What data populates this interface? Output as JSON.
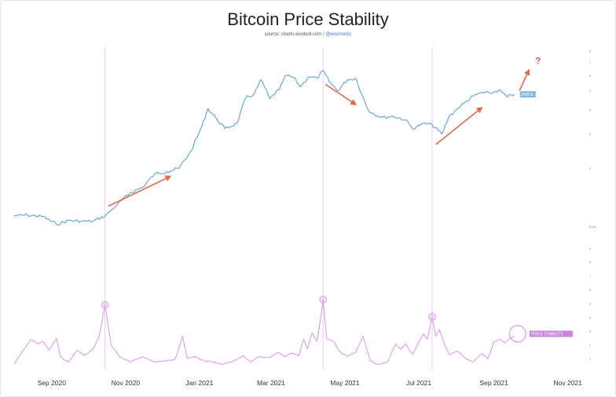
{
  "chart_data": {
    "type": "line",
    "title": "Bitcoin Price Stability",
    "subtitle_source": "source: charts.woobull.com / ",
    "subtitle_handle": "@woonomic",
    "x_axis": {
      "tick_labels": [
        "Sep 2020",
        "Nov 2020",
        "Jan 2021",
        "Mar 2021",
        "May 2021",
        "Jul 2021",
        "Sep 2021",
        "Nov 2021"
      ],
      "range": [
        "2020-08-01",
        "2021-11-20"
      ]
    },
    "price_axis": {
      "scale": "log",
      "range": [
        9000,
        80000
      ],
      "tick_labels": [
        {
          "v": 80000,
          "t": "8"
        },
        {
          "v": 70000,
          "t": "7"
        },
        {
          "v": 60000,
          "t": "6"
        },
        {
          "v": 50000,
          "t": "5"
        },
        {
          "v": 40000,
          "t": "4"
        },
        {
          "v": 30000,
          "t": "3"
        },
        {
          "v": 20000,
          "t": "2"
        },
        {
          "v": 10000,
          "t": "$10k"
        }
      ]
    },
    "stability_axis": {
      "tick_labels": [
        "9",
        "8",
        "7",
        "6",
        "5",
        "4",
        "3",
        "2",
        "1"
      ]
    },
    "vertical_markers": [
      "2020-10-15",
      "2021-04-13",
      "2021-07-12"
    ],
    "series": [
      {
        "name": "PRICE",
        "color": "#6aa9cc",
        "points": [
          [
            "2020-08-01",
            11400
          ],
          [
            "2020-08-12",
            11500
          ],
          [
            "2020-08-25",
            11300
          ],
          [
            "2020-09-05",
            10300
          ],
          [
            "2020-09-15",
            10800
          ],
          [
            "2020-09-25",
            10700
          ],
          [
            "2020-10-05",
            10700
          ],
          [
            "2020-10-15",
            11400
          ],
          [
            "2020-10-25",
            13000
          ],
          [
            "2020-11-05",
            15000
          ],
          [
            "2020-11-15",
            16000
          ],
          [
            "2020-11-25",
            18700
          ],
          [
            "2020-12-05",
            19200
          ],
          [
            "2020-12-15",
            20000
          ],
          [
            "2020-12-25",
            24500
          ],
          [
            "2021-01-03",
            33000
          ],
          [
            "2021-01-08",
            40500
          ],
          [
            "2021-01-15",
            36000
          ],
          [
            "2021-01-22",
            32000
          ],
          [
            "2021-02-01",
            34000
          ],
          [
            "2021-02-08",
            46000
          ],
          [
            "2021-02-15",
            48000
          ],
          [
            "2021-02-21",
            57000
          ],
          [
            "2021-02-28",
            45500
          ],
          [
            "2021-03-08",
            51000
          ],
          [
            "2021-03-13",
            60000
          ],
          [
            "2021-03-20",
            58500
          ],
          [
            "2021-03-25",
            52500
          ],
          [
            "2021-04-01",
            59000
          ],
          [
            "2021-04-08",
            58000
          ],
          [
            "2021-04-13",
            63500
          ],
          [
            "2021-04-18",
            56000
          ],
          [
            "2021-04-25",
            50000
          ],
          [
            "2021-05-03",
            57000
          ],
          [
            "2021-05-10",
            58000
          ],
          [
            "2021-05-15",
            48000
          ],
          [
            "2021-05-20",
            40000
          ],
          [
            "2021-05-25",
            38000
          ],
          [
            "2021-06-01",
            36500
          ],
          [
            "2021-06-10",
            37000
          ],
          [
            "2021-06-20",
            35500
          ],
          [
            "2021-06-26",
            32000
          ],
          [
            "2021-07-05",
            34000
          ],
          [
            "2021-07-12",
            33500
          ],
          [
            "2021-07-20",
            30000
          ],
          [
            "2021-07-26",
            37000
          ],
          [
            "2021-08-01",
            40000
          ],
          [
            "2021-08-08",
            43500
          ],
          [
            "2021-08-15",
            47000
          ],
          [
            "2021-08-22",
            49000
          ],
          [
            "2021-08-29",
            48500
          ],
          [
            "2021-09-05",
            50500
          ],
          [
            "2021-09-12",
            46500
          ],
          [
            "2021-09-18",
            48000
          ]
        ]
      },
      {
        "name": "PRICE STABILITY",
        "color": "#dba6e6",
        "points": [
          [
            "2020-08-01",
            0.2
          ],
          [
            "2020-08-08",
            1.4
          ],
          [
            "2020-08-15",
            2.5
          ],
          [
            "2020-08-20",
            2.1
          ],
          [
            "2020-08-25",
            2.3
          ],
          [
            "2020-08-30",
            1.5
          ],
          [
            "2020-09-05",
            2.6
          ],
          [
            "2020-09-08",
            0.9
          ],
          [
            "2020-09-15",
            0.4
          ],
          [
            "2020-09-22",
            1.5
          ],
          [
            "2020-09-28",
            1.0
          ],
          [
            "2020-10-05",
            1.6
          ],
          [
            "2020-10-10",
            2.7
          ],
          [
            "2020-10-15",
            5.7
          ],
          [
            "2020-10-20",
            2.0
          ],
          [
            "2020-10-27",
            0.9
          ],
          [
            "2020-11-05",
            0.4
          ],
          [
            "2020-11-15",
            0.9
          ],
          [
            "2020-11-25",
            0.4
          ],
          [
            "2020-12-05",
            0.5
          ],
          [
            "2020-12-12",
            0.7
          ],
          [
            "2020-12-18",
            2.8
          ],
          [
            "2020-12-22",
            0.7
          ],
          [
            "2020-12-28",
            0.9
          ],
          [
            "2021-01-05",
            0.5
          ],
          [
            "2021-01-12",
            0.4
          ],
          [
            "2021-01-20",
            0.2
          ],
          [
            "2021-02-01",
            0.6
          ],
          [
            "2021-02-06",
            1.0
          ],
          [
            "2021-02-12",
            0.4
          ],
          [
            "2021-02-20",
            0.9
          ],
          [
            "2021-02-28",
            0.8
          ],
          [
            "2021-03-07",
            1.3
          ],
          [
            "2021-03-12",
            0.9
          ],
          [
            "2021-03-18",
            1.2
          ],
          [
            "2021-03-24",
            1.0
          ],
          [
            "2021-03-28",
            2.5
          ],
          [
            "2021-03-31",
            1.6
          ],
          [
            "2021-04-04",
            3.1
          ],
          [
            "2021-04-08",
            2.3
          ],
          [
            "2021-04-11",
            4.5
          ],
          [
            "2021-04-13",
            6.2
          ],
          [
            "2021-04-16",
            2.6
          ],
          [
            "2021-04-22",
            2.3
          ],
          [
            "2021-04-26",
            1.4
          ],
          [
            "2021-05-03",
            0.9
          ],
          [
            "2021-05-10",
            1.3
          ],
          [
            "2021-05-16",
            2.8
          ],
          [
            "2021-05-22",
            0.5
          ],
          [
            "2021-05-28",
            0.2
          ],
          [
            "2021-06-05",
            0.4
          ],
          [
            "2021-06-12",
            2.1
          ],
          [
            "2021-06-16",
            1.6
          ],
          [
            "2021-06-20",
            2.1
          ],
          [
            "2021-06-26",
            1.1
          ],
          [
            "2021-07-01",
            2.3
          ],
          [
            "2021-07-05",
            3.0
          ],
          [
            "2021-07-08",
            2.5
          ],
          [
            "2021-07-12",
            4.6
          ],
          [
            "2021-07-15",
            2.8
          ],
          [
            "2021-07-18",
            3.4
          ],
          [
            "2021-07-22",
            2.1
          ],
          [
            "2021-07-26",
            1.1
          ],
          [
            "2021-08-02",
            1.4
          ],
          [
            "2021-08-09",
            0.7
          ],
          [
            "2021-08-15",
            0.4
          ],
          [
            "2021-08-22",
            1.2
          ],
          [
            "2021-08-27",
            0.7
          ],
          [
            "2021-09-01",
            2.3
          ],
          [
            "2021-09-06",
            2.5
          ],
          [
            "2021-09-10",
            2.2
          ],
          [
            "2021-09-15",
            2.6
          ],
          [
            "2021-09-18",
            2.8
          ]
        ]
      }
    ],
    "stability_peak_markers": [
      "2020-10-15",
      "2021-04-13",
      "2021-07-12"
    ],
    "annotations": [
      {
        "type": "arrow",
        "color": "#e06a4c",
        "from": [
          "2020-10-18",
          12800
        ],
        "to": [
          "2020-12-08",
          18200
        ]
      },
      {
        "type": "arrow",
        "color": "#e06a4c",
        "from": [
          "2021-04-15",
          54000
        ],
        "to": [
          "2021-05-10",
          42500
        ]
      },
      {
        "type": "arrow",
        "color": "#e06a4c",
        "from": [
          "2021-07-15",
          26500
        ],
        "to": [
          "2021-08-22",
          41000
        ]
      },
      {
        "type": "arrow",
        "color": "#e06a4c",
        "from": [
          "2021-09-22",
          50000
        ],
        "to": [
          "2021-09-30",
          64000
        ]
      },
      {
        "type": "text",
        "text": "?",
        "color": "#e06a4c",
        "at": [
          "2021-10-05",
          68500
        ]
      }
    ],
    "labels": {
      "price_tag": "PRICE",
      "stability_tag": "PRICE STABILITY"
    },
    "colors": {
      "price": "#6aa9cc",
      "stability": "#dba6e6",
      "arrow": "#e06a4c",
      "marker_line": "#e8cdee",
      "tag_price": "#7fb8d8",
      "tag_stability": "#c986dd"
    }
  }
}
